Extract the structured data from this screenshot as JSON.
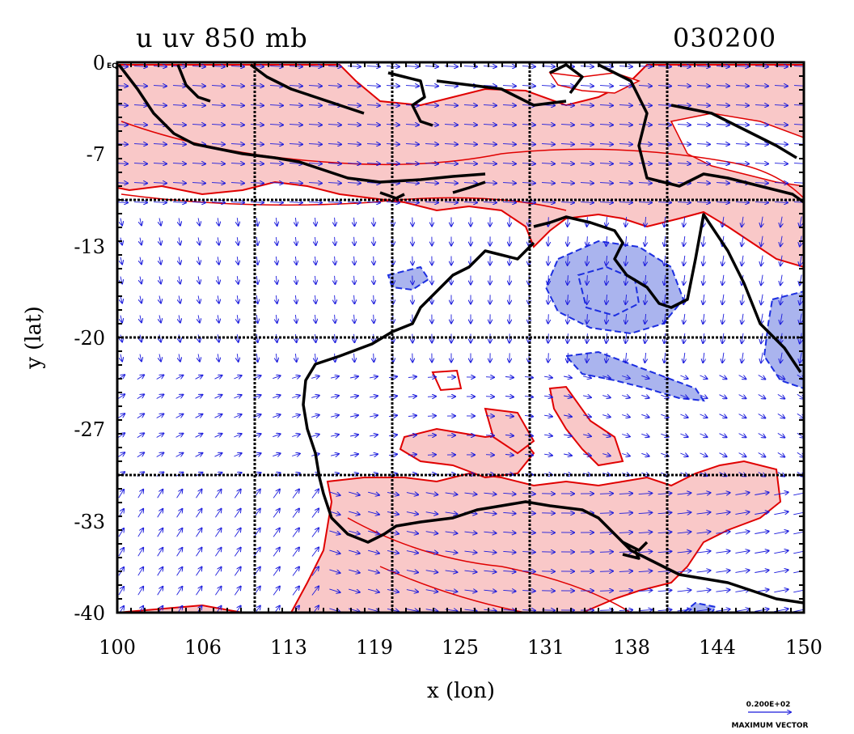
{
  "title_left": "u uv 850 mb",
  "title_right": "030200",
  "x_label": "x (lon)",
  "y_label": "y (lat)",
  "corner_label": "EQ",
  "x_ticks": [
    "100",
    "106",
    "113",
    "119",
    "125",
    "131",
    "138",
    "144",
    "150"
  ],
  "y_ticks": [
    "0",
    "-7",
    "-13",
    "-20",
    "-27",
    "-33",
    "-40"
  ],
  "vector_scale_value": "0.200E+02",
  "vector_scale_label": "MAXIMUM VECTOR",
  "colors": {
    "positive_fill": "#f9c8c8",
    "positive_contour": "#e00000",
    "negative_fill": "#aab4ee",
    "negative_contour": "#1c2ee0",
    "vector": "#1a1adc",
    "coastline": "#000000"
  },
  "map_extent": {
    "lon": [
      100,
      150
    ],
    "lat": [
      -40,
      0
    ]
  },
  "grid_lines": {
    "lon": [
      110,
      120,
      130,
      140
    ],
    "lat": [
      -10,
      -20,
      -30
    ]
  }
}
